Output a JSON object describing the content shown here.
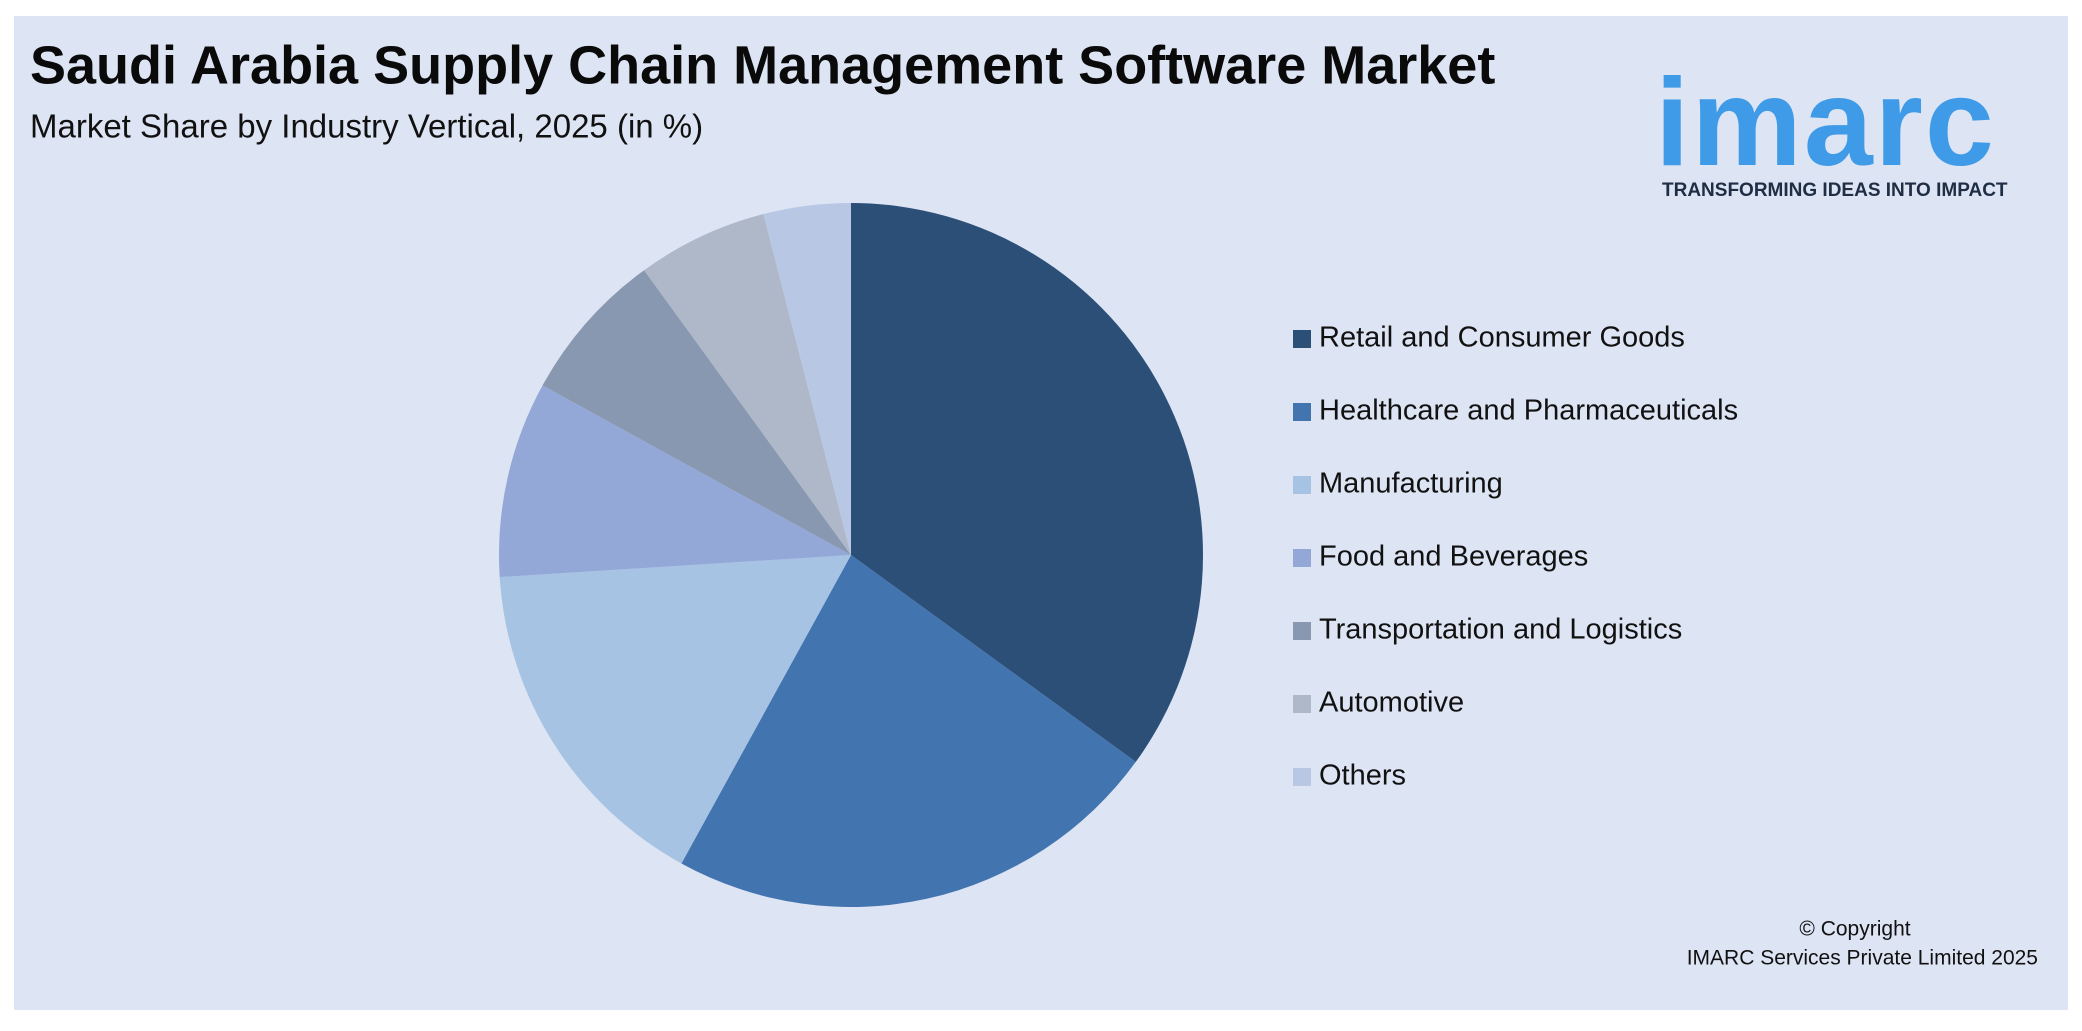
{
  "chart_data": {
    "type": "pie",
    "title": "Saudi Arabia Supply Chain Management Software Market",
    "subtitle": "Market Share by Industry Vertical, 2025 (in %)",
    "categories": [
      "Retail and Consumer Goods",
      "Healthcare and Pharmaceuticals",
      "Manufacturing",
      "Food and Beverages",
      "Transportation and Logistics",
      "Automotive",
      "Others"
    ],
    "values": [
      35,
      23,
      16,
      9,
      7,
      6,
      4
    ],
    "colors": [
      "#2c4f78",
      "#4274b0",
      "#a6c3e3",
      "#94a8d8",
      "#8898b0",
      "#aeb8c8",
      "#b8c8e4"
    ],
    "legend": "right"
  },
  "logo": {
    "text": "imarc",
    "tagline": "TRANSFORMING IDEAS INTO IMPACT"
  },
  "copyright": {
    "line1": "© Copyright",
    "line2": "IMARC Services Private Limited 2025"
  }
}
